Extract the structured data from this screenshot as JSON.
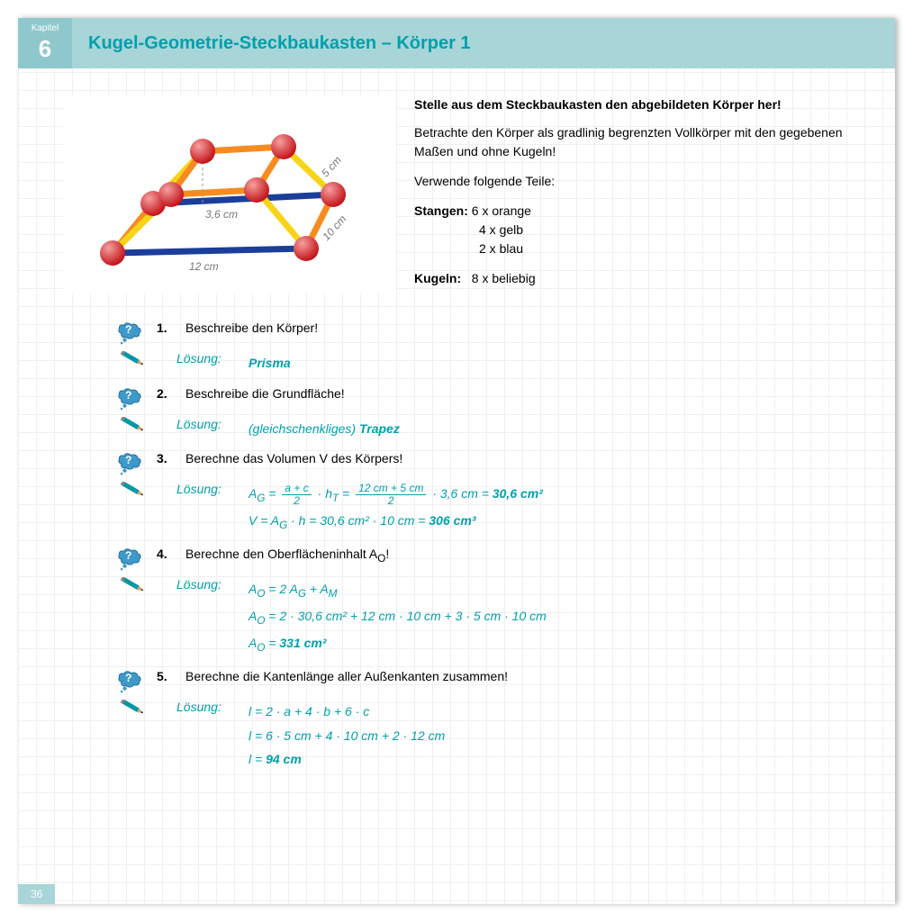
{
  "header": {
    "chapter_label": "Kapitel",
    "chapter_number": "6",
    "title": "Kugel-Geometrie-Steckbaukasten – Körper 1"
  },
  "diagram": {
    "dims": {
      "top": "5 cm",
      "height": "3,6 cm",
      "depth": "10 cm",
      "base": "12 cm"
    },
    "colors": {
      "ball": "#d61c1c",
      "ball_hi": "#f08080",
      "rod_orange": "#f68b1f",
      "rod_yellow": "#f7d417",
      "rod_blue": "#1b3e9a"
    }
  },
  "instructions": {
    "title": "Stelle aus dem Steckbaukasten den abgebildeten Körper her!",
    "para1": "Betrachte den Körper als gradlinig begrenzten Vollkörper mit den gegebenen Maßen und ohne Kugeln!",
    "para2": "Verwende folgende Teile:",
    "stangen_label": "Stangen:",
    "stangen": [
      "6 x orange",
      "4 x gelb",
      "2 x blau"
    ],
    "kugeln_label": "Kugeln:",
    "kugeln": "8 x beliebig"
  },
  "questions": [
    {
      "num": "1.",
      "text": "Beschreibe den Körper!",
      "solution_label": "Lösung:",
      "solution_lines": [
        "<b>Prisma</b>"
      ]
    },
    {
      "num": "2.",
      "text": "Beschreibe die Grundfläche!",
      "solution_label": "Lösung:",
      "solution_lines": [
        "(gleichschenkliges) <b>Trapez</b>"
      ]
    },
    {
      "num": "3.",
      "text": "Berechne das Volumen V des Körpers!",
      "solution_label": "Lösung:",
      "solution_lines": [
        "A<sub>G</sub> = <span class='frac'><span class='num'>a + c</span><span class='den'>2</span></span> · h<sub>T</sub> = <span class='frac'><span class='num'>12 cm + 5 cm</span><span class='den'>2</span></span> · 3,6 cm = <b>30,6 cm²</b>",
        "V = A<sub>G</sub> · h = 30,6 cm² · 10 cm = <b>306 cm³</b>"
      ]
    },
    {
      "num": "4.",
      "text": "Berechne den Oberflächeninhalt A<sub>O</sub>!",
      "solution_label": "Lösung:",
      "solution_lines": [
        "A<sub>O</sub> = 2 A<sub>G</sub> + A<sub>M</sub>",
        "A<sub>O</sub> = 2 · 30,6 cm² + 12 cm · 10 cm + 3 · 5 cm · 10 cm",
        "A<sub>O</sub> = <b>331 cm²</b>"
      ]
    },
    {
      "num": "5.",
      "text": "Berechne die Kantenlänge aller Außenkanten zusammen!",
      "solution_label": "Lösung:",
      "solution_lines": [
        "l = 2 · a + 4 · b + 6 · c",
        "l = 6 · 5 cm + 4 · 10 cm + 2 · 12 cm",
        "l = <b>94 cm</b>"
      ]
    }
  ],
  "page_number": "36"
}
